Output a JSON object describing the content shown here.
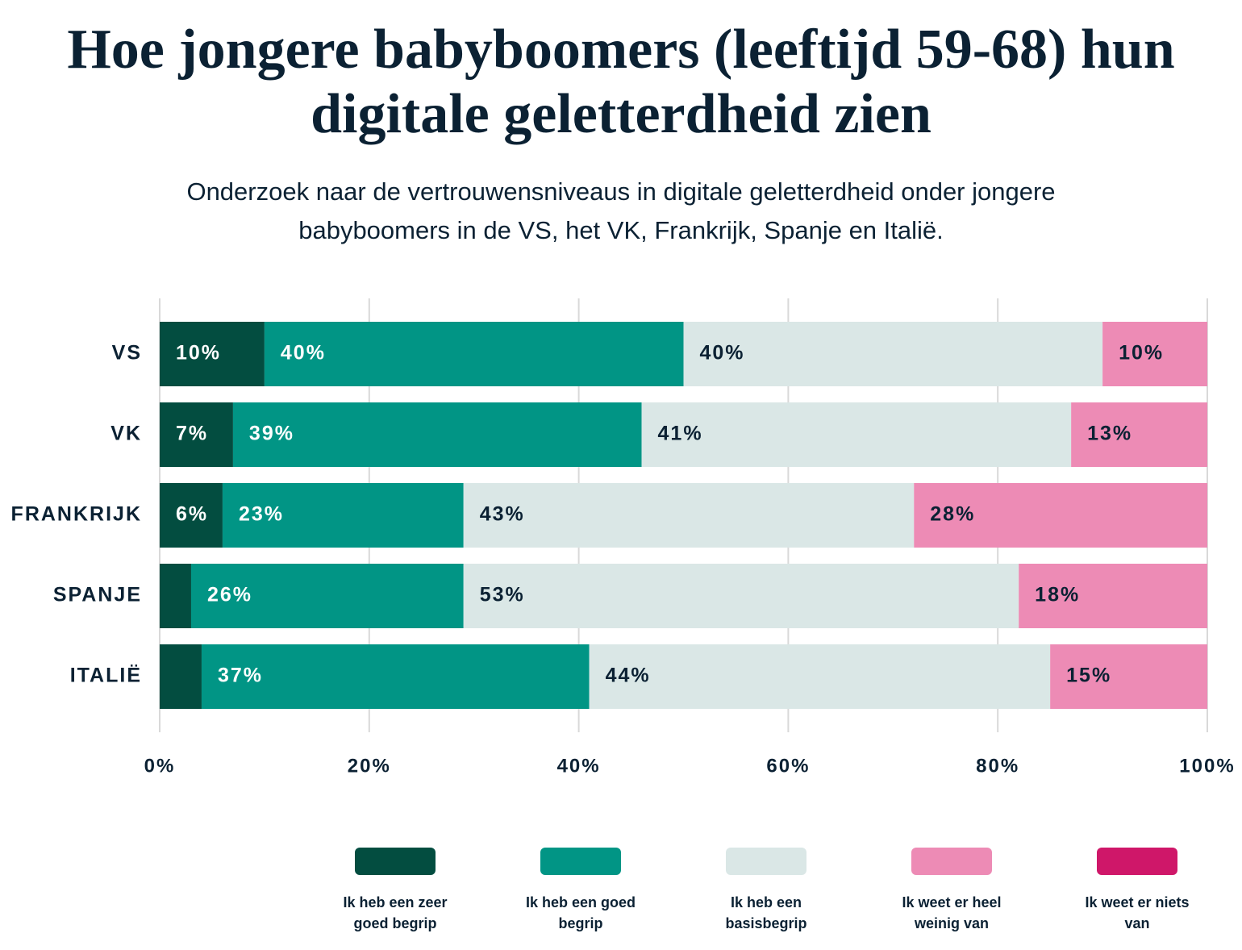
{
  "chart_data": {
    "type": "stacked-bar-horizontal",
    "title": "Hoe jongere babyboomers (leeftijd 59-68) hun digitale geletterdheid zien",
    "subtitle": "Onderzoek naar de vertrouwensniveaus in digitale geletterdheid onder jongere babyboomers in de VS, het VK, Frankrijk, Spanje en Italië.",
    "categories": [
      "VS",
      "VK",
      "FRANKRIJK",
      "SPANJE",
      "ITALIË"
    ],
    "series": [
      {
        "name": "Ik heb een zeer goed begrip",
        "color": "#034d40",
        "values": [
          10,
          7,
          6,
          3,
          4
        ],
        "value_labels": [
          "10%",
          "7%",
          "6%",
          null,
          null
        ]
      },
      {
        "name": "Ik heb een goed begrip",
        "color": "#019585",
        "values": [
          40,
          39,
          23,
          26,
          37
        ],
        "value_labels": [
          "40%",
          "39%",
          "23%",
          "26%",
          "37%"
        ]
      },
      {
        "name": "Ik heb een basisbegrip",
        "color": "#dae7e6",
        "values": [
          40,
          41,
          43,
          53,
          44
        ],
        "value_labels": [
          "40%",
          "41%",
          "43%",
          "53%",
          "44%"
        ]
      },
      {
        "name": "Ik weet er heel weinig van",
        "color": "#ed8bb5",
        "values": [
          10,
          13,
          28,
          18,
          15
        ],
        "value_labels": [
          "10%",
          "13%",
          "28%",
          "18%",
          "15%"
        ]
      },
      {
        "name": "Ik weet er niets van",
        "color": "#cf1769",
        "values": [
          0,
          0,
          0,
          0,
          0
        ],
        "value_labels": [
          null,
          null,
          null,
          null,
          null
        ]
      }
    ],
    "xlim": [
      0,
      100
    ],
    "xticks": [
      {
        "value": 0,
        "label": "0%"
      },
      {
        "value": 20,
        "label": "20%"
      },
      {
        "value": 40,
        "label": "40%"
      },
      {
        "value": 60,
        "label": "60%"
      },
      {
        "value": 80,
        "label": "80%"
      },
      {
        "value": 100,
        "label": "100%"
      }
    ],
    "grid": true
  }
}
